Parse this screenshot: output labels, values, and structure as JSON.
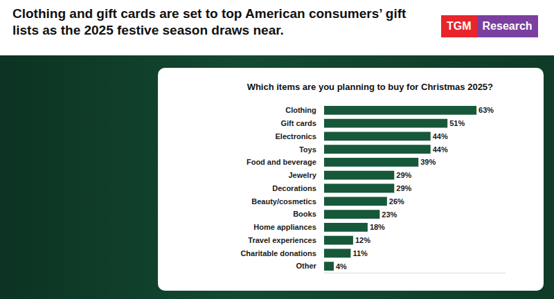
{
  "headline": "Clothing and gift cards are set to top American consumers’ gift lists as the 2025 festive season draws near.",
  "brand": "TGM Research",
  "chart_data": {
    "type": "bar",
    "title": "Which items are you planning to buy for Christmas 2025?",
    "orientation": "horizontal",
    "categories": [
      "Clothing",
      "Gift cards",
      "Electronics",
      "Toys",
      "Food and beverage",
      "Jewelry",
      "Decorations",
      "Beauty/cosmetics",
      "Books",
      "Home appliances",
      "Travel experiences",
      "Charitable donations",
      "Other"
    ],
    "values": [
      63,
      51,
      44,
      44,
      39,
      29,
      29,
      26,
      23,
      18,
      12,
      11,
      4
    ],
    "value_labels": [
      "63%",
      "51%",
      "44%",
      "44%",
      "39%",
      "29%",
      "29%",
      "26%",
      "23%",
      "18%",
      "12%",
      "11%",
      "4%"
    ],
    "data_labels": true,
    "color": "#17583a",
    "xlim": [
      0,
      75
    ],
    "grid": false,
    "tick_labels": "y"
  }
}
